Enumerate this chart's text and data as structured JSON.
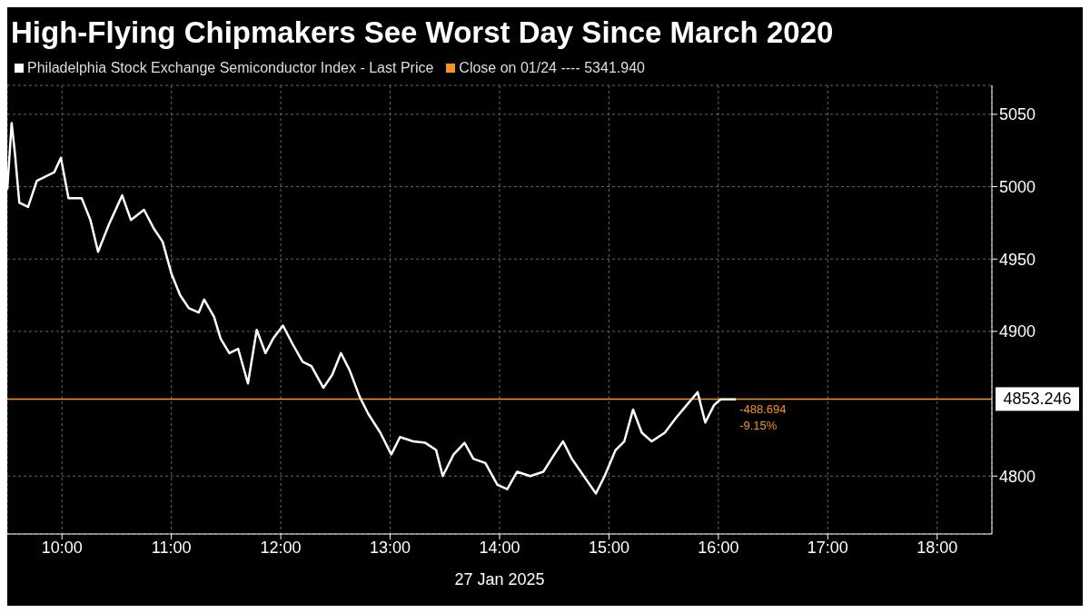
{
  "chart_data": {
    "type": "line",
    "title": "High-Flying Chipmakers See Worst Day Since March 2020",
    "xlabel": "27 Jan 2025",
    "legend": "top left",
    "grid": true,
    "marker": "none",
    "line_style": "solid",
    "xlim": [
      9.5,
      18.5
    ],
    "ylim": [
      4760,
      5070
    ],
    "xticks": [
      {
        "value": 10,
        "label": "10:00"
      },
      {
        "value": 11,
        "label": "11:00"
      },
      {
        "value": 12,
        "label": "12:00"
      },
      {
        "value": 13,
        "label": "13:00"
      },
      {
        "value": 14,
        "label": "14:00"
      },
      {
        "value": 15,
        "label": "15:00"
      },
      {
        "value": 16,
        "label": "16:00"
      },
      {
        "value": 17,
        "label": "17:00"
      },
      {
        "value": 18,
        "label": "18:00"
      }
    ],
    "yticks": [
      4800,
      4900,
      4950,
      5000,
      5050
    ],
    "ref_lines": [
      {
        "axis": "y",
        "value": 4853.246,
        "label": "4853.246",
        "color": "#f7931e"
      }
    ],
    "annotations": [
      "Close on 01/24 ---- 5341.940",
      {
        "text": "-488.694",
        "x": 16.16,
        "y": 4853.246
      },
      {
        "text": "-9.15%",
        "x": 16.16,
        "y": 4853.246
      }
    ],
    "series": [
      {
        "name": "Philadelphia Stock Exchange Semiconductor Index - Last Price",
        "color": "#ffffff",
        "x": [
          9.5,
          9.54,
          9.57,
          9.61,
          9.69,
          9.77,
          9.85,
          9.93,
          9.99,
          10.06,
          10.18,
          10.26,
          10.33,
          10.43,
          10.55,
          10.63,
          10.75,
          10.84,
          10.92,
          11.0,
          11.08,
          11.16,
          11.25,
          11.3,
          11.39,
          11.45,
          11.53,
          11.61,
          11.7,
          11.78,
          11.86,
          11.93,
          12.02,
          12.11,
          12.2,
          12.28,
          12.39,
          12.47,
          12.55,
          12.63,
          12.72,
          12.8,
          12.91,
          13.01,
          13.09,
          13.21,
          13.32,
          13.42,
          13.48,
          13.58,
          13.68,
          13.76,
          13.87,
          13.98,
          14.07,
          14.16,
          14.28,
          14.4,
          14.5,
          14.58,
          14.66,
          14.77,
          14.88,
          14.96,
          15.06,
          15.14,
          15.22,
          15.3,
          15.39,
          15.51,
          15.61,
          15.71,
          15.81,
          15.88,
          15.96,
          16.02,
          16.16
        ],
        "values": [
          4998,
          5044,
          5023,
          4989,
          4986,
          5004,
          5007,
          5010,
          5020,
          4992,
          4992,
          4977,
          4955,
          4974,
          4994,
          4977,
          4984,
          4971,
          4962,
          4940,
          4925,
          4916,
          4913,
          4922,
          4910,
          4895,
          4885,
          4888,
          4864,
          4901,
          4885,
          4895,
          4904,
          4891,
          4879,
          4876,
          4861,
          4870,
          4885,
          4873,
          4855,
          4843,
          4830,
          4815,
          4827,
          4824,
          4823,
          4818,
          4800,
          4815,
          4823,
          4812,
          4809,
          4794,
          4791,
          4803,
          4800,
          4803,
          4815,
          4824,
          4812,
          4800,
          4788,
          4800,
          4818,
          4824,
          4846,
          4830,
          4824,
          4830,
          4840,
          4849,
          4858,
          4837,
          4849,
          4853,
          4853
        ]
      }
    ]
  }
}
